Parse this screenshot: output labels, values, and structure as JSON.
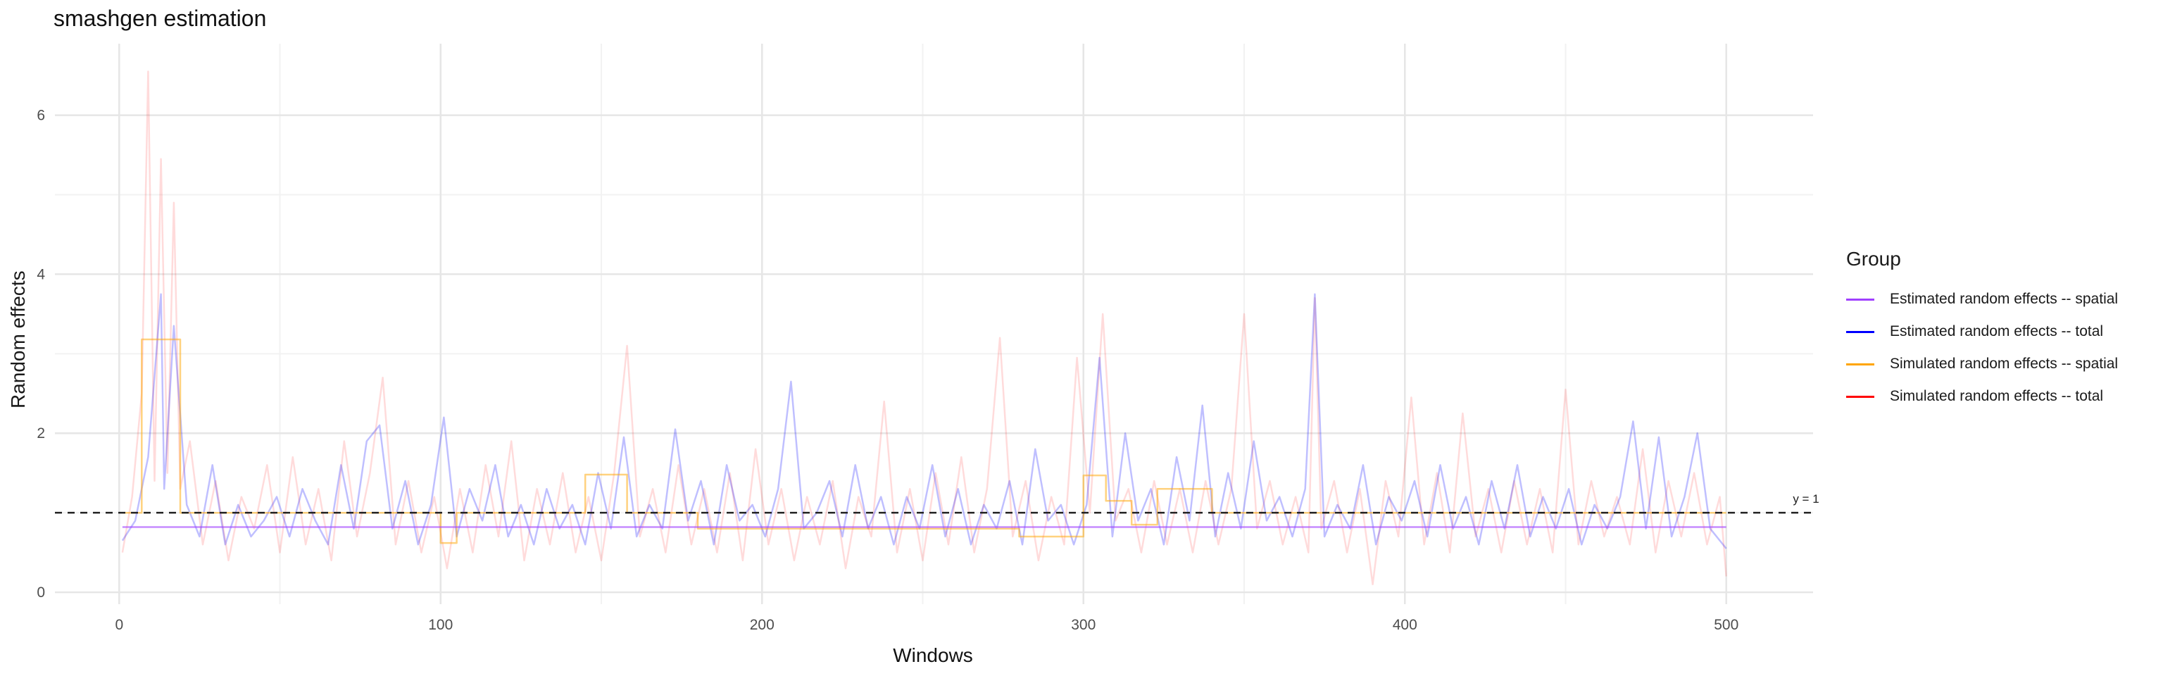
{
  "chart_data": {
    "type": "line",
    "title": "smashgen estimation",
    "xlabel": "Windows",
    "ylabel": "Random effects",
    "xlim": [
      -20,
      527
    ],
    "ylim": [
      -0.15,
      6.9
    ],
    "x_ticks": [
      0,
      100,
      200,
      300,
      400,
      500
    ],
    "y_ticks": [
      0,
      2,
      4,
      6
    ],
    "grid": true,
    "legend": {
      "title": "Group",
      "placement": "right",
      "entries": [
        {
          "label": "Estimated random effects -- spatial",
          "color": "#a040ff"
        },
        {
          "label": "Estimated random effects -- total",
          "color": "#0000ff"
        },
        {
          "label": "Simulated random effects -- spatial",
          "color": "#ffa500"
        },
        {
          "label": "Simulated random effects -- total",
          "color": "#ff0000"
        }
      ]
    },
    "reference_line": {
      "y": 1,
      "label": "y = 1",
      "style": "dashed"
    },
    "series": [
      {
        "name": "Estimated random effects -- spatial",
        "color": "#a040ff",
        "x": [
          1,
          500
        ],
        "y": [
          0.82,
          0.82
        ]
      },
      {
        "name": "Simulated random effects -- spatial",
        "color": "#ffa500",
        "x": [
          1,
          7,
          7,
          19,
          19,
          100,
          100,
          105,
          105,
          145,
          145,
          158,
          158,
          180,
          180,
          280,
          280,
          300,
          300,
          307,
          307,
          315,
          315,
          323,
          323,
          340,
          340,
          500
        ],
        "y": [
          1.0,
          1.0,
          3.18,
          3.18,
          1.0,
          1.0,
          0.62,
          0.62,
          1.0,
          1.0,
          1.48,
          1.48,
          1.0,
          1.0,
          0.8,
          0.8,
          0.7,
          0.7,
          1.47,
          1.47,
          1.15,
          1.15,
          0.85,
          0.85,
          1.3,
          1.3,
          1.0,
          1.0
        ]
      },
      {
        "name": "Estimated random effects -- total",
        "color": "#0000ff",
        "x": [
          1,
          5,
          9,
          13,
          14,
          17,
          21,
          25,
          29,
          33,
          37,
          41,
          45,
          49,
          53,
          57,
          61,
          65,
          69,
          73,
          77,
          81,
          85,
          89,
          93,
          97,
          101,
          105,
          109,
          113,
          117,
          121,
          125,
          129,
          133,
          137,
          141,
          145,
          149,
          153,
          157,
          161,
          165,
          169,
          173,
          177,
          181,
          185,
          189,
          193,
          197,
          201,
          205,
          209,
          213,
          217,
          221,
          225,
          229,
          233,
          237,
          241,
          245,
          249,
          253,
          257,
          261,
          265,
          269,
          273,
          277,
          281,
          285,
          289,
          293,
          297,
          301,
          305,
          309,
          313,
          317,
          321,
          325,
          329,
          333,
          337,
          341,
          345,
          349,
          353,
          357,
          361,
          365,
          369,
          372,
          375,
          379,
          383,
          387,
          391,
          395,
          399,
          403,
          407,
          411,
          415,
          419,
          423,
          427,
          431,
          435,
          439,
          443,
          447,
          451,
          455,
          459,
          463,
          467,
          471,
          475,
          479,
          483,
          487,
          491,
          495,
          500
        ],
        "y": [
          0.65,
          0.9,
          1.7,
          3.75,
          1.3,
          3.35,
          1.1,
          0.7,
          1.6,
          0.6,
          1.1,
          0.7,
          0.9,
          1.2,
          0.7,
          1.3,
          0.9,
          0.6,
          1.6,
          0.8,
          1.9,
          2.1,
          0.8,
          1.4,
          0.6,
          1.1,
          2.2,
          0.7,
          1.3,
          0.9,
          1.6,
          0.7,
          1.1,
          0.6,
          1.3,
          0.8,
          1.1,
          0.6,
          1.5,
          0.8,
          1.95,
          0.7,
          1.1,
          0.8,
          2.05,
          0.9,
          1.4,
          0.6,
          1.6,
          0.9,
          1.1,
          0.7,
          1.3,
          2.65,
          0.8,
          1.0,
          1.4,
          0.7,
          1.6,
          0.8,
          1.2,
          0.6,
          1.2,
          0.8,
          1.6,
          0.7,
          1.3,
          0.6,
          1.1,
          0.8,
          1.4,
          0.6,
          1.8,
          0.9,
          1.1,
          0.6,
          1.1,
          2.95,
          0.7,
          2.0,
          0.9,
          1.3,
          0.6,
          1.7,
          0.9,
          2.35,
          0.7,
          1.5,
          0.8,
          1.9,
          0.9,
          1.2,
          0.7,
          1.3,
          3.75,
          0.7,
          1.1,
          0.8,
          1.6,
          0.6,
          1.2,
          0.9,
          1.4,
          0.7,
          1.6,
          0.8,
          1.2,
          0.6,
          1.4,
          0.8,
          1.6,
          0.7,
          1.2,
          0.8,
          1.3,
          0.6,
          1.1,
          0.8,
          1.2,
          2.15,
          0.8,
          1.95,
          0.7,
          1.2,
          2.0,
          0.8,
          0.55
        ]
      },
      {
        "name": "Simulated random effects -- total",
        "color": "#ff0000",
        "x": [
          1,
          4,
          7,
          9,
          11,
          13,
          15,
          17,
          19,
          22,
          26,
          30,
          34,
          38,
          42,
          46,
          50,
          54,
          58,
          62,
          66,
          70,
          74,
          78,
          82,
          86,
          90,
          94,
          98,
          102,
          106,
          110,
          114,
          118,
          122,
          126,
          130,
          134,
          138,
          142,
          146,
          150,
          154,
          158,
          162,
          166,
          170,
          174,
          178,
          182,
          186,
          190,
          194,
          198,
          202,
          206,
          210,
          214,
          218,
          222,
          226,
          230,
          234,
          238,
          242,
          246,
          250,
          254,
          258,
          262,
          266,
          270,
          274,
          278,
          282,
          286,
          290,
          294,
          298,
          302,
          306,
          310,
          314,
          318,
          322,
          326,
          330,
          334,
          338,
          342,
          346,
          350,
          354,
          358,
          362,
          366,
          370,
          372,
          374,
          378,
          382,
          386,
          390,
          394,
          398,
          402,
          406,
          410,
          414,
          418,
          422,
          426,
          430,
          434,
          438,
          442,
          446,
          450,
          454,
          458,
          462,
          466,
          470,
          474,
          478,
          482,
          486,
          490,
          494,
          498,
          500
        ],
        "y": [
          0.5,
          1.2,
          2.5,
          6.55,
          1.4,
          5.45,
          1.5,
          4.9,
          1.3,
          1.9,
          0.6,
          1.4,
          0.4,
          1.2,
          0.8,
          1.6,
          0.5,
          1.7,
          0.6,
          1.3,
          0.4,
          1.9,
          0.7,
          1.5,
          2.7,
          0.6,
          1.4,
          0.5,
          1.2,
          0.3,
          1.3,
          0.5,
          1.6,
          0.7,
          1.9,
          0.4,
          1.3,
          0.6,
          1.5,
          0.5,
          1.2,
          0.4,
          1.5,
          3.1,
          0.7,
          1.3,
          0.5,
          1.6,
          0.6,
          1.3,
          0.5,
          1.5,
          0.4,
          1.8,
          0.6,
          1.3,
          0.4,
          1.2,
          0.6,
          1.4,
          0.3,
          1.2,
          0.7,
          2.4,
          0.5,
          1.3,
          0.4,
          1.5,
          0.6,
          1.7,
          0.5,
          1.3,
          3.2,
          0.7,
          1.4,
          0.4,
          1.2,
          0.6,
          2.95,
          1.0,
          3.5,
          0.9,
          1.3,
          0.5,
          1.4,
          0.6,
          1.3,
          0.5,
          1.4,
          0.6,
          1.3,
          3.5,
          0.8,
          1.4,
          0.6,
          1.2,
          0.5,
          3.7,
          0.8,
          1.4,
          0.5,
          1.3,
          0.1,
          1.4,
          0.7,
          2.45,
          0.6,
          1.5,
          0.5,
          2.25,
          0.7,
          1.3,
          0.5,
          1.4,
          0.6,
          1.3,
          0.5,
          2.55,
          0.6,
          1.4,
          0.7,
          1.2,
          0.6,
          1.8,
          0.5,
          1.4,
          0.7,
          1.5,
          0.6,
          1.2,
          0.2
        ]
      }
    ]
  }
}
